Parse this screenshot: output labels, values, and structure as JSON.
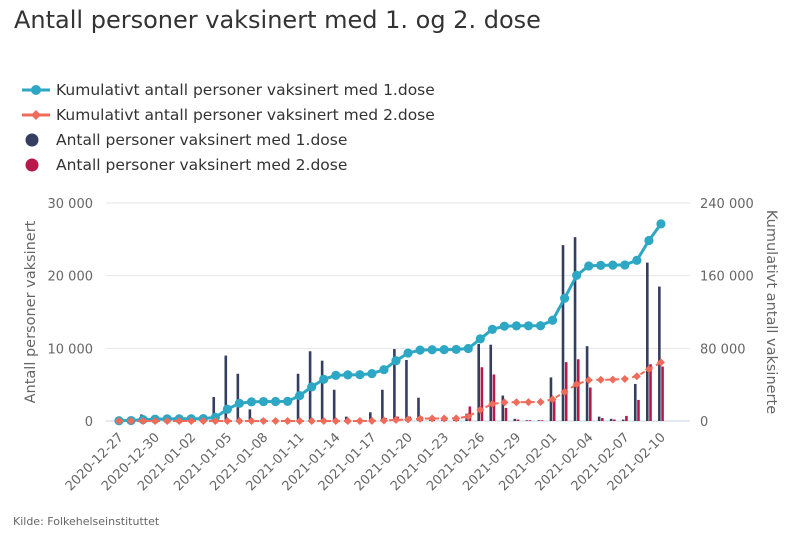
{
  "title": "Antall personer vaksinert med 1. og 2. dose",
  "source": "Kilde: Folkehelseinstituttet",
  "colors": {
    "cum1": "#2ea7c4",
    "cum2": "#ef6b5a",
    "daily1": "#343e61",
    "daily2": "#b8184a",
    "grid": "#e6e6e6",
    "baseline": "#c8d3e0"
  },
  "legend": [
    {
      "label": "Kumulativt antall personer vaksinert med 1.dose",
      "symbol": "line-circle",
      "color": "#2ea7c4"
    },
    {
      "label": "Kumulativt antall personer vaksinert med 2.dose",
      "symbol": "line-diamond",
      "color": "#ef6b5a"
    },
    {
      "label": "Antall personer vaksinert med 1.dose",
      "symbol": "dot",
      "color": "#343e61"
    },
    {
      "label": "Antall personer vaksinert med 2.dose",
      "symbol": "dot",
      "color": "#b8184a"
    }
  ],
  "chart_data": {
    "type": "bar+line",
    "title": "Antall personer vaksinert med 1. og 2. dose",
    "xlabel": "",
    "ylabel_left": "Antall personer vaksinert",
    "ylabel_right": "Kumulativt antall vaksinerte",
    "ylim_left": [
      0,
      30000
    ],
    "ylim_right": [
      0,
      240000
    ],
    "yticks_left": [
      0,
      10000,
      20000,
      30000
    ],
    "yticks_left_labels": [
      "0",
      "10 000",
      "20 000",
      "30 000"
    ],
    "yticks_right": [
      0,
      80000,
      160000,
      240000
    ],
    "yticks_right_labels": [
      "0",
      "80 000",
      "160 000",
      "240 000"
    ],
    "grid": true,
    "legend_position": "top-left",
    "x_tick_labels": [
      "2020-12-27",
      "2020-12-30",
      "2021-01-02",
      "2021-01-05",
      "2021-01-08",
      "2021-01-11",
      "2021-01-14",
      "2021-01-17",
      "2021-01-20",
      "2021-01-23",
      "2021-01-26",
      "2021-01-29",
      "2021-02-01",
      "2021-02-04",
      "2021-02-07",
      "2021-02-10"
    ],
    "dates": [
      "2020-12-27",
      "2020-12-28",
      "2020-12-29",
      "2020-12-30",
      "2020-12-31",
      "2021-01-01",
      "2021-01-02",
      "2021-01-03",
      "2021-01-04",
      "2021-01-05",
      "2021-01-06",
      "2021-01-07",
      "2021-01-08",
      "2021-01-09",
      "2021-01-10",
      "2021-01-11",
      "2021-01-12",
      "2021-01-13",
      "2021-01-14",
      "2021-01-15",
      "2021-01-16",
      "2021-01-17",
      "2021-01-18",
      "2021-01-19",
      "2021-01-20",
      "2021-01-21",
      "2021-01-22",
      "2021-01-23",
      "2021-01-24",
      "2021-01-25",
      "2021-01-26",
      "2021-01-27",
      "2021-01-28",
      "2021-01-29",
      "2021-01-30",
      "2021-01-31",
      "2021-02-01",
      "2021-02-02",
      "2021-02-03",
      "2021-02-04",
      "2021-02-05",
      "2021-02-06",
      "2021-02-07",
      "2021-02-08",
      "2021-02-09",
      "2021-02-10",
      "2021-02-11"
    ],
    "series": [
      {
        "name": "Antall personer vaksinert med 1.dose",
        "kind": "bar",
        "axis": "left",
        "values": [
          200,
          300,
          900,
          500,
          300,
          100,
          100,
          100,
          3300,
          9000,
          6500,
          1600,
          300,
          100,
          100,
          6500,
          9600,
          8300,
          4300,
          600,
          200,
          1200,
          4300,
          9900,
          8400,
          3200,
          400,
          200,
          200,
          1000,
          10600,
          10500,
          3500,
          300,
          100,
          100,
          6000,
          24200,
          25300,
          10300,
          600,
          300,
          200,
          5100,
          21800,
          18500,
          0
        ]
      },
      {
        "name": "Antall personer vaksinert med 2.dose",
        "kind": "bar",
        "axis": "left",
        "values": [
          0,
          0,
          0,
          0,
          0,
          0,
          0,
          0,
          0,
          0,
          0,
          0,
          0,
          0,
          0,
          0,
          0,
          0,
          0,
          0,
          0,
          200,
          400,
          600,
          600,
          600,
          300,
          100,
          100,
          2000,
          7400,
          6400,
          1800,
          200,
          100,
          100,
          2900,
          8100,
          8500,
          4600,
          400,
          200,
          700,
          2900,
          7800,
          7500,
          0
        ]
      },
      {
        "name": "Kumulativt antall personer vaksinert med 1.dose",
        "kind": "line",
        "axis": "right",
        "values": [
          300,
          500,
          1500,
          2000,
          2300,
          2400,
          2500,
          2600,
          4000,
          13000,
          19500,
          21100,
          21400,
          21500,
          21600,
          28000,
          37600,
          45900,
          50200,
          50800,
          51000,
          52200,
          56500,
          66400,
          74800,
          78000,
          78400,
          78600,
          78800,
          79800,
          90400,
          100900,
          104400,
          104700,
          104800,
          104900,
          110900,
          135100,
          160400,
          170700,
          171300,
          171600,
          171800,
          176900,
          198700,
          217000,
          0
        ]
      },
      {
        "name": "Kumulativt antall personer vaksinert med 2.dose",
        "kind": "line",
        "axis": "right",
        "values": [
          0,
          0,
          0,
          0,
          0,
          0,
          0,
          0,
          0,
          0,
          0,
          0,
          0,
          0,
          0,
          0,
          0,
          0,
          0,
          0,
          0,
          200,
          600,
          1200,
          1800,
          2400,
          2700,
          2800,
          2900,
          4900,
          12300,
          18700,
          20500,
          20700,
          20800,
          20900,
          23800,
          31900,
          40400,
          45000,
          45400,
          45600,
          46300,
          49200,
          57000,
          64500,
          0
        ]
      }
    ]
  }
}
